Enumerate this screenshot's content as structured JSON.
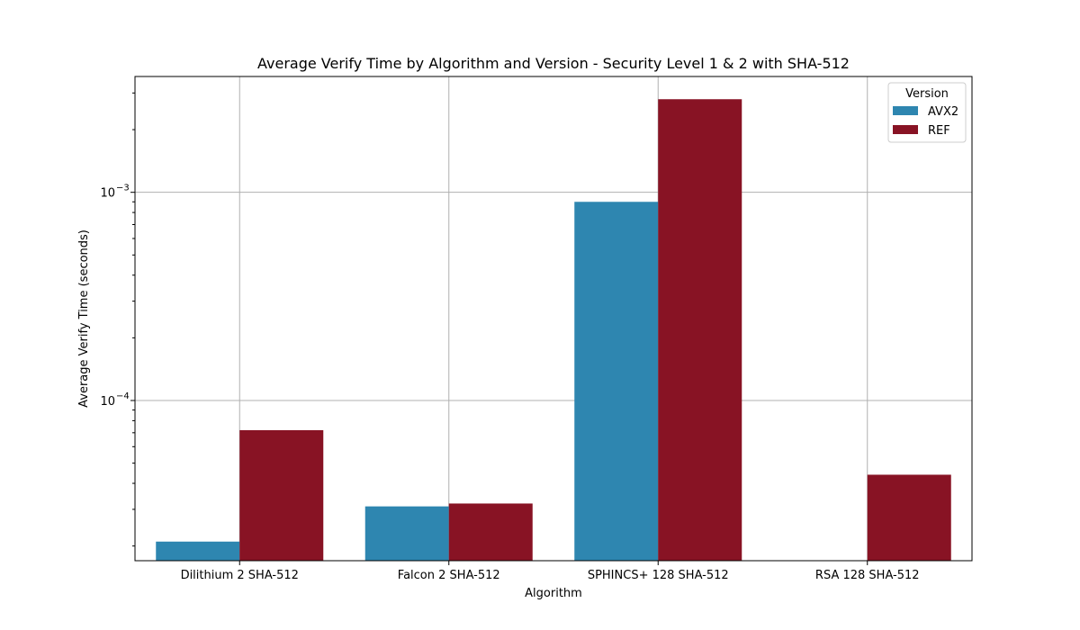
{
  "chart_data": {
    "type": "bar",
    "title": "Average Verify Time by Algorithm and Version - Security Level 1 & 2 with SHA-512",
    "xlabel": "Algorithm",
    "ylabel": "Average Verify Time (seconds)",
    "yscale": "log",
    "ylim": [
      1.7e-05,
      0.0036
    ],
    "yticks": [
      {
        "value": 0.0001,
        "base": "10",
        "exp": "−4"
      },
      {
        "value": 0.001,
        "base": "10",
        "exp": "−3"
      }
    ],
    "grid": true,
    "legend": {
      "title": "Version",
      "placement": "top-right"
    },
    "categories": [
      "Dilithium 2 SHA-512",
      "Falcon 2 SHA-512",
      "SPHINCS+ 128 SHA-512",
      "RSA 128 SHA-512"
    ],
    "series": [
      {
        "name": "AVX2",
        "color": "#2e86b0",
        "values": [
          2.1e-05,
          3.1e-05,
          0.0009,
          null
        ]
      },
      {
        "name": "REF",
        "color": "#881324",
        "values": [
          7.2e-05,
          3.2e-05,
          0.0028,
          4.4e-05
        ]
      }
    ]
  }
}
